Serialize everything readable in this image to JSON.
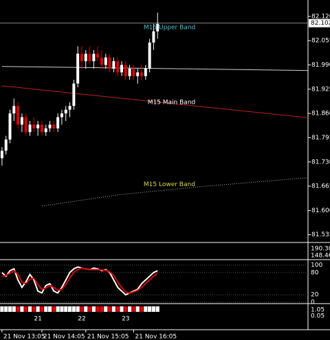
{
  "chart_data": {
    "type": "candlestick",
    "candles": [
      [
        81.74,
        81.77,
        81.72,
        81.76
      ],
      [
        81.76,
        81.8,
        81.75,
        81.79
      ],
      [
        81.79,
        81.87,
        81.78,
        81.86
      ],
      [
        81.86,
        81.9,
        81.84,
        81.88
      ],
      [
        81.88,
        81.89,
        81.82,
        81.83
      ],
      [
        81.83,
        81.86,
        81.81,
        81.85
      ],
      [
        81.85,
        81.86,
        81.8,
        81.81
      ],
      [
        81.81,
        81.84,
        81.8,
        81.83
      ],
      [
        81.83,
        81.85,
        81.81,
        81.82
      ],
      [
        81.82,
        81.84,
        81.8,
        81.83
      ],
      [
        81.83,
        81.84,
        81.8,
        81.81
      ],
      [
        81.81,
        81.83,
        81.8,
        81.82
      ],
      [
        81.82,
        81.84,
        81.81,
        81.83
      ],
      [
        81.83,
        81.84,
        81.81,
        81.82
      ],
      [
        81.82,
        81.86,
        81.81,
        81.85
      ],
      [
        81.85,
        81.87,
        81.83,
        81.86
      ],
      [
        81.86,
        81.88,
        81.84,
        81.87
      ],
      [
        81.87,
        81.89,
        81.85,
        81.88
      ],
      [
        81.88,
        81.95,
        81.87,
        81.94
      ],
      [
        81.94,
        82.04,
        81.93,
        82.02
      ],
      [
        82.02,
        82.04,
        81.98,
        82.0
      ],
      [
        82.0,
        82.03,
        81.98,
        82.02
      ],
      [
        82.02,
        82.04,
        81.99,
        82.0
      ],
      [
        82.0,
        82.03,
        81.98,
        82.02
      ],
      [
        82.02,
        82.04,
        82.0,
        82.01
      ],
      [
        82.01,
        82.03,
        81.98,
        81.99
      ],
      [
        81.99,
        82.02,
        81.98,
        82.01
      ],
      [
        82.01,
        82.02,
        81.97,
        81.98
      ],
      [
        81.98,
        82.01,
        81.97,
        82.0
      ],
      [
        82.0,
        82.01,
        81.96,
        81.97
      ],
      [
        81.97,
        82.0,
        81.96,
        81.99
      ],
      [
        81.99,
        82.0,
        81.95,
        81.96
      ],
      [
        81.96,
        81.99,
        81.95,
        81.98
      ],
      [
        81.98,
        81.99,
        81.95,
        81.96
      ],
      [
        81.96,
        81.98,
        81.94,
        81.97
      ],
      [
        81.97,
        81.99,
        81.95,
        81.96
      ],
      [
        81.96,
        81.99,
        81.95,
        81.98
      ],
      [
        81.98,
        82.06,
        81.97,
        82.05
      ],
      [
        82.05,
        82.1,
        82.03,
        82.08
      ],
      [
        82.08,
        82.13,
        82.06,
        82.1
      ]
    ],
    "up_color": "#ffffff",
    "down_color": "#e00000",
    "xlim": [
      -0.5,
      76.7
    ],
    "ylim": [
      81.516,
      82.164
    ],
    "yticks": [
      {
        "value": 82.12,
        "label": "82.120"
      },
      {
        "value": 82.055,
        "label": "82.055"
      },
      {
        "value": 81.99,
        "label": "81.990"
      },
      {
        "value": 81.925,
        "label": "81.925"
      },
      {
        "value": 81.86,
        "label": "81.860"
      },
      {
        "value": 81.795,
        "label": "81.795"
      },
      {
        "value": 81.73,
        "label": "81.730"
      },
      {
        "value": 81.665,
        "label": "81.665"
      },
      {
        "value": 81.6,
        "label": "81.600"
      },
      {
        "value": 81.535,
        "label": "81.535"
      }
    ],
    "current_price": 82.102,
    "xticks": [
      {
        "value": 0,
        "label": "21 Nov 13:05"
      },
      {
        "value": 10,
        "label": "21 Nov 14:05"
      },
      {
        "value": 21,
        "label": "21 Nov 15:05"
      },
      {
        "value": 33,
        "label": "21 Nov 16:05"
      }
    ],
    "lines": [
      {
        "name": "M15 Main Band",
        "color": "#c02020",
        "x": [
          0,
          78
        ],
        "values": [
          81.934,
          81.847
        ]
      },
      {
        "name": "M15 Lower Band",
        "color": "#b0b0a0",
        "x": [
          10,
          30,
          50,
          78
        ],
        "values": [
          81.612,
          81.643,
          81.664,
          81.689
        ]
      },
      {
        "color": "#d0d0d0",
        "x": [
          0,
          78
        ],
        "values": [
          81.986,
          81.975
        ]
      }
    ],
    "annotations": [
      {
        "text": "M15 Upper Band",
        "color": "#40c8d0"
      },
      {
        "text": "M15 Main Band",
        "color": "#ffffff"
      },
      {
        "text": "M15 Lower Band",
        "color": "#d8d840"
      }
    ],
    "indicator_ticks": [
      {
        "value": 190.3,
        "label": "190.30"
      },
      {
        "value": 148.46,
        "label": "148.46"
      }
    ],
    "stochastic": {
      "ylim": [
        0,
        100
      ],
      "yticks": [
        100,
        80,
        20,
        0
      ],
      "series": [
        {
          "color": "#ffffff",
          "values": [
            80,
            70,
            85,
            90,
            60,
            40,
            55,
            75,
            60,
            30,
            25,
            45,
            50,
            30,
            25,
            40,
            60,
            80,
            90,
            95,
            92,
            90,
            88,
            92,
            90,
            85,
            88,
            80,
            60,
            40,
            30,
            20,
            25,
            30,
            35,
            50,
            60,
            70,
            80,
            85
          ]
        },
        {
          "color": "#e00000",
          "values": [
            70,
            72,
            78,
            85,
            75,
            55,
            50,
            62,
            65,
            48,
            35,
            38,
            45,
            40,
            32,
            35,
            48,
            65,
            80,
            88,
            92,
            90,
            88,
            88,
            88,
            87,
            86,
            82,
            72,
            55,
            40,
            28,
            24,
            28,
            32,
            40,
            50,
            60,
            70,
            78
          ]
        }
      ]
    },
    "strip_ticks": [
      {
        "value": 9,
        "label": "21"
      },
      {
        "value": 20,
        "label": "22"
      },
      {
        "value": 31,
        "label": "23"
      }
    ],
    "strip_axis": [
      1.05,
      0.05
    ]
  }
}
